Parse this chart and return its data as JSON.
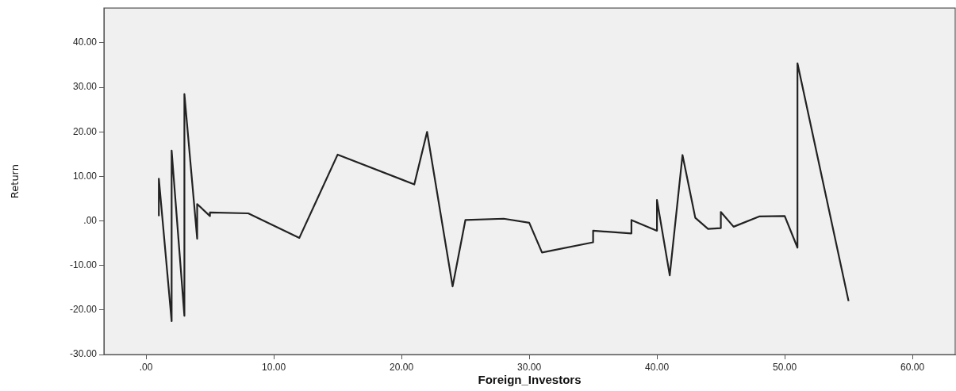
{
  "chart_data": {
    "type": "line",
    "xlabel": "Foreign_Investors",
    "ylabel": "Return",
    "marker": "none",
    "line_style": "solid",
    "grid": false,
    "legend": false,
    "series": [
      {
        "color": "#222222",
        "x": [
          1,
          1,
          2,
          2,
          3,
          3,
          4,
          4,
          5,
          5,
          8,
          12,
          15,
          21,
          22,
          24,
          25,
          28,
          30,
          31,
          35,
          35,
          38,
          38,
          40,
          40,
          41,
          42,
          43,
          44,
          45,
          45,
          46,
          48,
          50,
          51,
          51,
          55
        ],
        "values": [
          1.1,
          9.5,
          -22.5,
          15.8,
          -21.3,
          28.5,
          -4.0,
          3.8,
          1.1,
          1.9,
          1.7,
          -3.8,
          14.9,
          8.2,
          20.0,
          -14.7,
          0.2,
          0.5,
          -0.4,
          -7.1,
          -4.8,
          -2.2,
          -2.8,
          0.2,
          -2.2,
          4.7,
          -12.2,
          14.8,
          0.7,
          -1.8,
          -1.6,
          2.0,
          -1.3,
          1.0,
          1.1,
          -6.0,
          35.4,
          -18.0
        ]
      }
    ],
    "xlim": [
      -3.3,
      63.35
    ],
    "xticks": [
      {
        "value": 0,
        "label": ".00"
      },
      {
        "value": 10,
        "label": "10.00"
      },
      {
        "value": 20,
        "label": "20.00"
      },
      {
        "value": 30,
        "label": "30.00"
      },
      {
        "value": 40,
        "label": "40.00"
      },
      {
        "value": 50,
        "label": "50.00"
      },
      {
        "value": 60,
        "label": "60.00"
      }
    ],
    "ylim": [
      -30,
      47.8
    ],
    "yticks": [
      {
        "value": -30,
        "label": "-30.00"
      },
      {
        "value": -20,
        "label": "-20.00"
      },
      {
        "value": -10,
        "label": "-10.00"
      },
      {
        "value": 0,
        "label": ".00"
      },
      {
        "value": 10,
        "label": "10.00"
      },
      {
        "value": 20,
        "label": "20.00"
      },
      {
        "value": 30,
        "label": "30.00"
      },
      {
        "value": 40,
        "label": "40.00"
      }
    ]
  }
}
